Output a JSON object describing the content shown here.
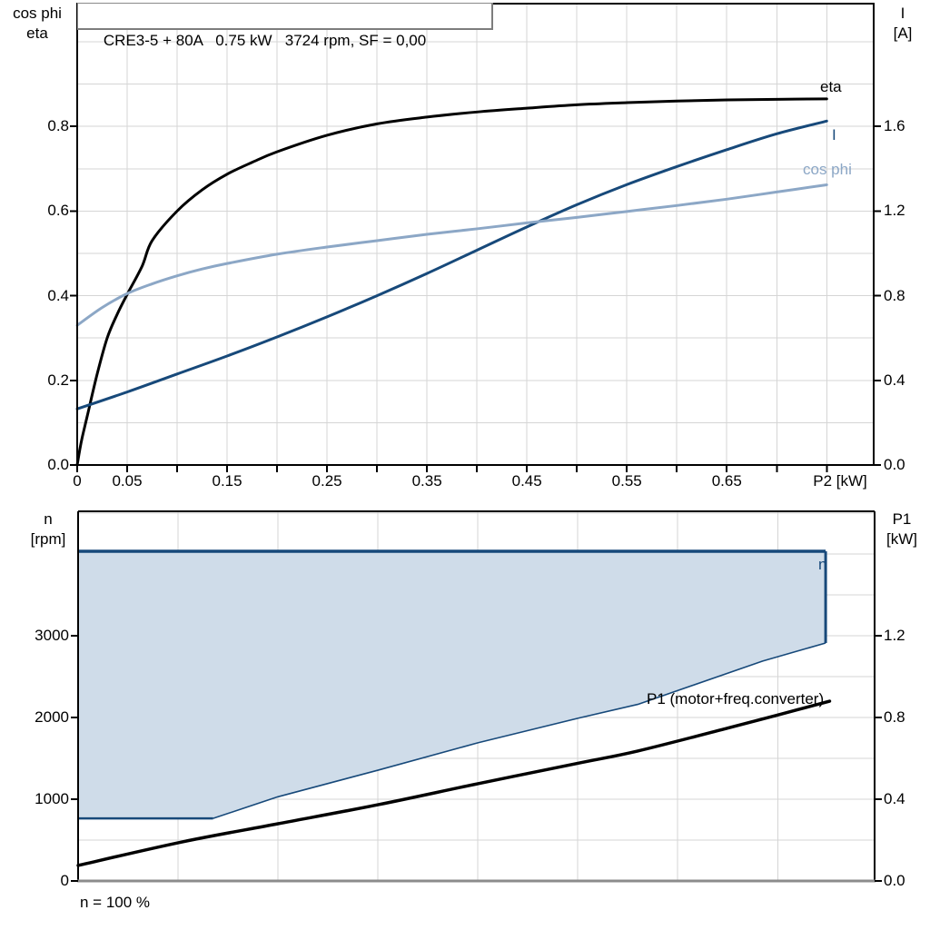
{
  "page": {
    "background": "#ffffff",
    "grid_color": "#d5d5d5",
    "axis_color": "#000000",
    "bottom_axis_color": "#8c8c8c"
  },
  "chart_data": [
    {
      "type": "line",
      "title": "CRE3-5 + 80A   0.75 kW   3724 rpm, SF = 0,00",
      "x_axis": {
        "label": "P2 [kW]",
        "range": [
          0,
          0.797
        ],
        "grid_step": 0.05,
        "tick_step": 0.05,
        "tick_max": 0.75,
        "ticks": [
          {
            "v": 0,
            "label": "0"
          },
          {
            "v": 0.05,
            "label": "0.05"
          },
          {
            "v": 0.15,
            "label": "0.15"
          },
          {
            "v": 0.25,
            "label": "0.25"
          },
          {
            "v": 0.35,
            "label": "0.35"
          },
          {
            "v": 0.45,
            "label": "0.45"
          },
          {
            "v": 0.55,
            "label": "0.55"
          },
          {
            "v": 0.65,
            "label": "0.65"
          }
        ]
      },
      "y_left": {
        "title_lines": [
          "cos phi",
          "eta"
        ],
        "range": [
          0,
          1.09
        ],
        "grid_step": 0.1,
        "ticks": [
          {
            "v": 0,
            "label": "0.0"
          },
          {
            "v": 0.2,
            "label": "0.2"
          },
          {
            "v": 0.4,
            "label": "0.4"
          },
          {
            "v": 0.6,
            "label": "0.6"
          },
          {
            "v": 0.8,
            "label": "0.8"
          }
        ]
      },
      "y_right": {
        "title_lines": [
          "I",
          "[A]"
        ],
        "range": [
          0,
          2.18
        ],
        "ticks": [
          {
            "v": 0,
            "label": "0.0"
          },
          {
            "v": 0.4,
            "label": "0.4"
          },
          {
            "v": 0.8,
            "label": "0.8"
          },
          {
            "v": 1.2,
            "label": "1.2"
          },
          {
            "v": 1.6,
            "label": "1.6"
          }
        ]
      },
      "series": [
        {
          "name": "eta",
          "axis": "left",
          "color": "#000000",
          "width": 3,
          "points": [
            [
              0,
              0
            ],
            [
              0.0025,
              0.035
            ],
            [
              0.005,
              0.065
            ],
            [
              0.01,
              0.115
            ],
            [
              0.02,
              0.215
            ],
            [
              0.03,
              0.3
            ],
            [
              0.04,
              0.356
            ],
            [
              0.05,
              0.403
            ],
            [
              0.065,
              0.47
            ],
            [
              0.075,
              0.53
            ],
            [
              0.1,
              0.6
            ],
            [
              0.125,
              0.65
            ],
            [
              0.15,
              0.687
            ],
            [
              0.175,
              0.715
            ],
            [
              0.2,
              0.74
            ],
            [
              0.25,
              0.779
            ],
            [
              0.3,
              0.806
            ],
            [
              0.35,
              0.822
            ],
            [
              0.4,
              0.834
            ],
            [
              0.45,
              0.843
            ],
            [
              0.5,
              0.851
            ],
            [
              0.55,
              0.856
            ],
            [
              0.6,
              0.86
            ],
            [
              0.65,
              0.8625
            ],
            [
              0.7,
              0.864
            ],
            [
              0.75,
              0.865
            ]
          ]
        },
        {
          "name": "I",
          "axis": "right",
          "color": "#17497a",
          "width": 3,
          "points": [
            [
              0,
              0.265
            ],
            [
              0.05,
              0.345
            ],
            [
              0.1,
              0.43
            ],
            [
              0.15,
              0.515
            ],
            [
              0.2,
              0.605
            ],
            [
              0.25,
              0.7
            ],
            [
              0.3,
              0.8
            ],
            [
              0.35,
              0.905
            ],
            [
              0.4,
              1.015
            ],
            [
              0.45,
              1.125
            ],
            [
              0.5,
              1.23
            ],
            [
              0.55,
              1.325
            ],
            [
              0.6,
              1.41
            ],
            [
              0.65,
              1.49
            ],
            [
              0.7,
              1.565
            ],
            [
              0.75,
              1.625
            ]
          ]
        },
        {
          "name": "cos phi",
          "axis": "left",
          "color": "#8ca7c6",
          "width": 3,
          "points": [
            [
              0,
              0.33
            ],
            [
              0.025,
              0.372
            ],
            [
              0.05,
              0.405
            ],
            [
              0.075,
              0.428
            ],
            [
              0.1,
              0.447
            ],
            [
              0.125,
              0.463
            ],
            [
              0.15,
              0.476
            ],
            [
              0.2,
              0.498
            ],
            [
              0.25,
              0.515
            ],
            [
              0.3,
              0.53
            ],
            [
              0.35,
              0.545
            ],
            [
              0.4,
              0.558
            ],
            [
              0.45,
              0.572
            ],
            [
              0.5,
              0.585
            ],
            [
              0.55,
              0.599
            ],
            [
              0.6,
              0.613
            ],
            [
              0.65,
              0.628
            ],
            [
              0.7,
              0.645
            ],
            [
              0.75,
              0.662
            ]
          ]
        }
      ]
    },
    {
      "type": "line",
      "x_axis": {
        "range": [
          0,
          0.797
        ],
        "grid_step": 0.1
      },
      "y_left": {
        "title_lines": [
          "n",
          "[rpm]"
        ],
        "range": [
          0,
          4522
        ],
        "grid_step": 500,
        "ticks": [
          {
            "v": 0,
            "label": "0"
          },
          {
            "v": 1000,
            "label": "1000"
          },
          {
            "v": 2000,
            "label": "2000"
          },
          {
            "v": 3000,
            "label": "3000"
          }
        ]
      },
      "y_right": {
        "title_lines": [
          "P1",
          "[kW]"
        ],
        "range": [
          0,
          1.809
        ],
        "ticks": [
          {
            "v": 0,
            "label": "0.0"
          },
          {
            "v": 0.4,
            "label": "0.4"
          },
          {
            "v": 0.8,
            "label": "0.8"
          },
          {
            "v": 1.2,
            "label": "1.2"
          }
        ]
      },
      "footnote": "n = 100 %",
      "envelope": {
        "label": "n",
        "fill": "#cfdce9",
        "stroke": "#17497a",
        "max_speed_rpm": 4033,
        "min_speed_rpm": 765,
        "top_edge": [
          [
            0,
            4033
          ],
          [
            0.748,
            4033
          ]
        ],
        "right_edge": [
          [
            0.748,
            4033
          ],
          [
            0.748,
            2911
          ]
        ],
        "lower_curve": [
          [
            0.748,
            2911
          ],
          [
            0.685,
            2690
          ],
          [
            0.56,
            2160
          ],
          [
            0.5,
            1990
          ],
          [
            0.4,
            1690
          ],
          [
            0.3,
            1355
          ],
          [
            0.2,
            1030
          ],
          [
            0.135,
            765
          ]
        ],
        "min_flat": [
          [
            0.135,
            765
          ],
          [
            0,
            765
          ]
        ]
      },
      "series": [
        {
          "name": "P1 (motor+freq.converter)",
          "axis": "right",
          "color": "#000000",
          "width": 3.5,
          "points": [
            [
              0,
              0.076
            ],
            [
              0.104,
              0.191
            ],
            [
              0.2,
              0.28
            ],
            [
              0.3,
              0.373
            ],
            [
              0.4,
              0.476
            ],
            [
              0.5,
              0.576
            ],
            [
              0.56,
              0.636
            ],
            [
              0.65,
              0.748
            ],
            [
              0.7,
              0.812
            ],
            [
              0.752,
              0.88
            ]
          ]
        }
      ]
    }
  ]
}
